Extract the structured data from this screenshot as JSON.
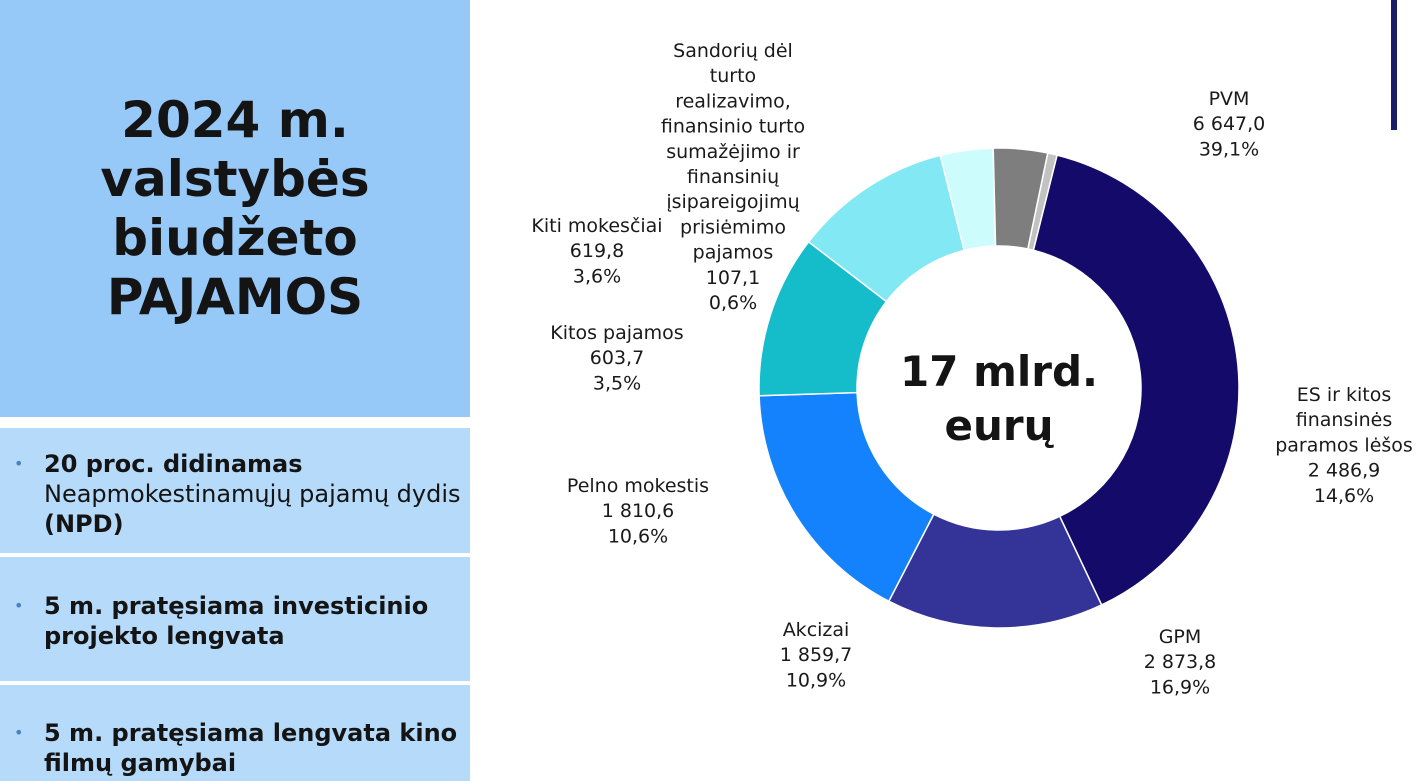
{
  "panel": {
    "title": "2024 m.\nvalstybės\nbiudžeto\nPAJAMOS",
    "bullets": [
      {
        "bold": "20 proc. didinamas",
        "text": "Neapmokestinamųjų pajamų dydis",
        "bold_tail": "(NPD)"
      },
      {
        "bold": "5 m. pratęsiama investicinio projekto lengvata",
        "text": "",
        "bold_tail": ""
      },
      {
        "bold": "5 m. pratęsiama lengvata kino filmų gamybai",
        "text": "",
        "bold_tail": ""
      }
    ],
    "bullet_glyph": "•"
  },
  "colors": {
    "panel_bg": "#96c8f8",
    "bullet_bg": "#b6dafa",
    "accent": "#16206a"
  },
  "chart_data": {
    "type": "pie",
    "donut": true,
    "center_label": [
      "17 mlrd.",
      "eurų"
    ],
    "unit": "mln. eurų",
    "slices": [
      {
        "name": "PVM",
        "value": 6647.0,
        "value_label": "6 647,0",
        "percent": "39,1%",
        "color": "#140a6a"
      },
      {
        "name": "ES ir kitos finansinės paramos lėšos",
        "value": 2486.9,
        "value_label": "2 486,9",
        "percent": "14,6%",
        "color": "#333398"
      },
      {
        "name": "GPM",
        "value": 2873.8,
        "value_label": "2 873,8",
        "percent": "16,9%",
        "color": "#1382fc"
      },
      {
        "name": "Akcizai",
        "value": 1859.7,
        "value_label": "1 859,7",
        "percent": "10,9%",
        "color": "#15bcca"
      },
      {
        "name": "Pelno mokestis",
        "value": 1810.6,
        "value_label": "1 810,6",
        "percent": "10,6%",
        "color": "#82e8f4"
      },
      {
        "name": "Kitos pajamos",
        "value": 603.7,
        "value_label": "603,7",
        "percent": "3,5%",
        "color": "#ccfcfc"
      },
      {
        "name": "Kiti mokesčiai",
        "value": 619.8,
        "value_label": "619,8",
        "percent": "3,6%",
        "color": "#7e7e7e"
      },
      {
        "name": "Sandorių dėl turto realizavimo, finansinio turto sumažėjimo ir finansinių įsipareigojimų prisiėmimo pajamos",
        "value": 107.1,
        "value_label": "107,1",
        "percent": "0,6%",
        "color": "#c2c2c2"
      }
    ],
    "labels": [
      {
        "lines": [
          "PVM",
          "6 647,0",
          "39,1%"
        ]
      },
      {
        "lines": [
          "ES ir kitos",
          "finansinės",
          "paramos lėšos",
          "2 486,9",
          "14,6%"
        ]
      },
      {
        "lines": [
          "GPM",
          "2 873,8",
          "16,9%"
        ]
      },
      {
        "lines": [
          "Akcizai",
          "1 859,7",
          "10,9%"
        ]
      },
      {
        "lines": [
          "Pelno mokestis",
          "1 810,6",
          "10,6%"
        ]
      },
      {
        "lines": [
          "Kitos pajamos",
          "603,7",
          "3,5%"
        ]
      },
      {
        "lines": [
          "Kiti mokesčiai",
          "619,8",
          "3,6%"
        ]
      },
      {
        "lines": [
          "Sandorių dėl",
          "turto",
          "realizavimo,",
          "finansinio turto",
          "sumažėjimo ir",
          "finansinių",
          "įsipareigojimų",
          "prisiėmimo",
          "pajamos",
          "107,1",
          "0,6%"
        ]
      }
    ]
  }
}
